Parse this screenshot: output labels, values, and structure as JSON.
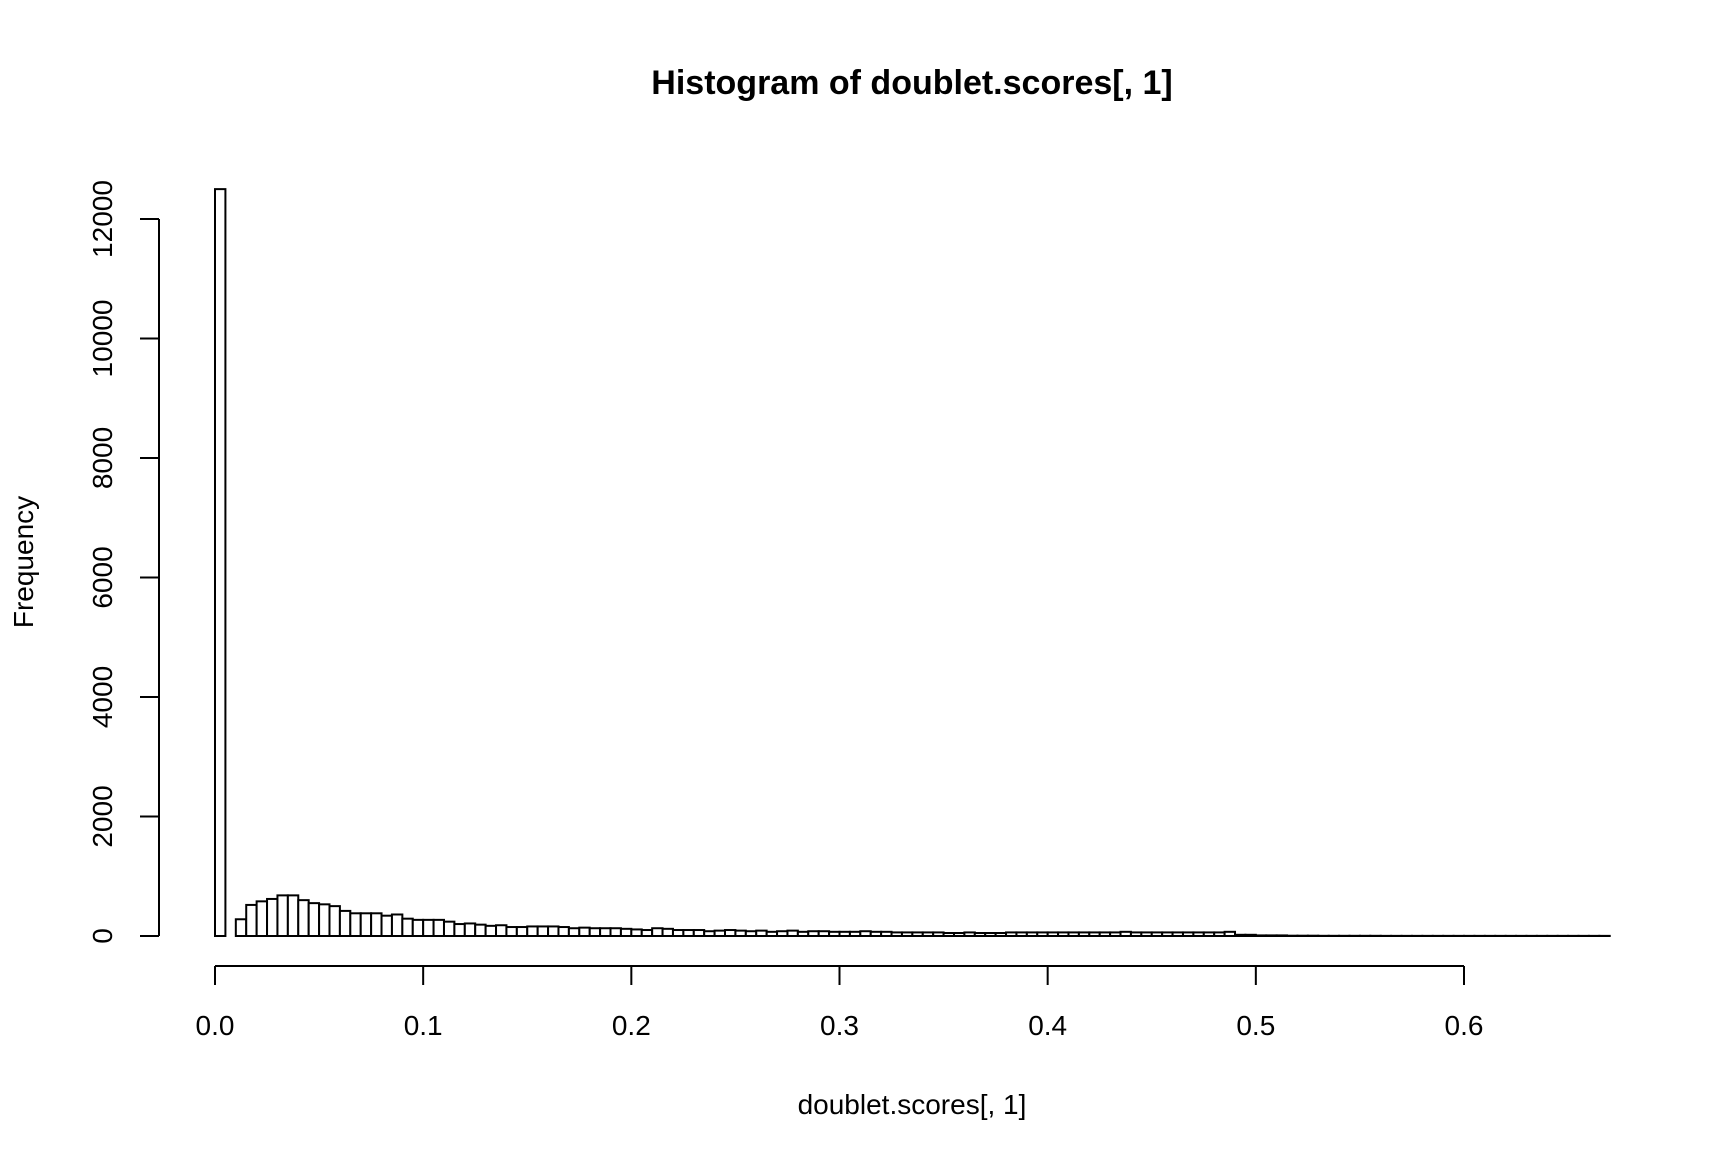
{
  "chart_data": {
    "type": "bar",
    "title": "Histogram of doublet.scores[, 1]",
    "xlabel": "doublet.scores[, 1]",
    "ylabel": "Frequency",
    "xlim": [
      0,
      0.6
    ],
    "ylim": [
      0,
      12000
    ],
    "x_ticks": [
      "0.0",
      "0.1",
      "0.2",
      "0.3",
      "0.4",
      "0.5",
      "0.6"
    ],
    "y_ticks": [
      "0",
      "2000",
      "4000",
      "6000",
      "8000",
      "10000",
      "12000"
    ],
    "bin_width": 0.005,
    "bin_start": 0,
    "values": [
      12500,
      0,
      280,
      520,
      580,
      620,
      680,
      680,
      600,
      550,
      530,
      500,
      420,
      380,
      380,
      380,
      340,
      360,
      290,
      270,
      270,
      270,
      240,
      200,
      210,
      190,
      170,
      180,
      150,
      150,
      160,
      160,
      160,
      150,
      130,
      140,
      130,
      130,
      130,
      120,
      110,
      100,
      130,
      120,
      100,
      100,
      100,
      80,
      90,
      100,
      90,
      80,
      90,
      70,
      80,
      90,
      70,
      80,
      80,
      70,
      70,
      70,
      80,
      70,
      70,
      60,
      60,
      60,
      60,
      60,
      50,
      50,
      60,
      50,
      50,
      50,
      60,
      60,
      60,
      60,
      60,
      60,
      60,
      60,
      60,
      60,
      60,
      70,
      60,
      60,
      60,
      60,
      60,
      60,
      60,
      60,
      60,
      70,
      20,
      20,
      10,
      10,
      10,
      5,
      5,
      5,
      3,
      3,
      3,
      3,
      3,
      3,
      2,
      2,
      2,
      2,
      2,
      2,
      2,
      2,
      2,
      2,
      2,
      2,
      2,
      2,
      2,
      2,
      2,
      2,
      2,
      2,
      2,
      2
    ]
  }
}
